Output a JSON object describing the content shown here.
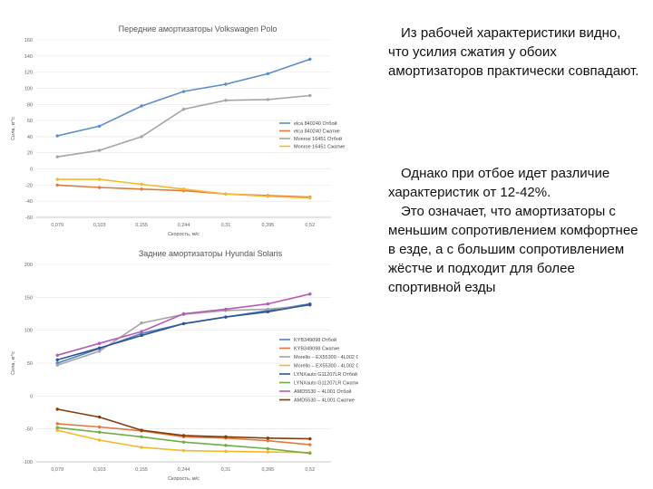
{
  "text": {
    "paragraph1": "Из рабочей характеристики видно, что усилия сжатия у обоих амортизаторов практически совпадают.",
    "paragraph2a": "Однако при отбое идет различие характеристик от 12-42%.",
    "paragraph2b": "Это означает, что амортизаторы с меньшим сопротивлением комфортнее в езде, а с большим сопротивлением жёстче и подходит для более спортивной езды"
  },
  "chart_data": [
    {
      "type": "line",
      "title": "Передние амортизаторы Volkswagen Polo",
      "xlabel": "Скорость, м/с",
      "ylabel": "Сила, кг*с",
      "categories": [
        "0,079",
        "0,103",
        "0,155",
        "0,244",
        "0,31",
        "0,395",
        "0,52"
      ],
      "ylim": [
        -60,
        160
      ],
      "yticks": [
        -60,
        -40,
        -20,
        0,
        20,
        40,
        60,
        80,
        100,
        120,
        140,
        160
      ],
      "grid": true,
      "legend_position": "right",
      "series": [
        {
          "name": "elca 840240  Отбой",
          "color": "#5b8ec9",
          "values": [
            41,
            53,
            78,
            96,
            105,
            118,
            136
          ]
        },
        {
          "name": "elca 840240  Сжатие",
          "color": "#e07b3f",
          "values": [
            -20,
            -23,
            -25,
            -27,
            -31,
            -33,
            -35
          ]
        },
        {
          "name": "Monroe 16451 Отбой",
          "color": "#a5a5a5",
          "values": [
            15,
            23,
            40,
            74,
            85,
            86,
            91
          ]
        },
        {
          "name": "Monroe 16451 Сжатие",
          "color": "#f5b82b",
          "values": [
            -13,
            -13,
            -19,
            -25,
            -31,
            -34,
            -36
          ]
        }
      ]
    },
    {
      "type": "line",
      "title": "Задние амортизаторы Hyundai Solaris",
      "xlabel": "Скорость, м/с",
      "ylabel": "Сила, кг*с",
      "categories": [
        "0,079",
        "0,103",
        "0,155",
        "0,244",
        "0,31",
        "0,395",
        "0,52"
      ],
      "ylim": [
        -100,
        200
      ],
      "yticks": [
        -100,
        -50,
        0,
        50,
        100,
        150,
        200
      ],
      "grid": true,
      "legend_position": "right",
      "series": [
        {
          "name": "KYB349098  Отбой",
          "color": "#4f81bd",
          "values": [
            50,
            72,
            95,
            110,
            120,
            130,
            140
          ]
        },
        {
          "name": "KYB349098  Сжатие",
          "color": "#e07b3f",
          "values": [
            -42,
            -47,
            -53,
            -62,
            -64,
            -68,
            -74
          ]
        },
        {
          "name": "Morello – EX55300 - 4L002 Отбой",
          "color": "#a5a5a5",
          "values": [
            47,
            68,
            111,
            124,
            130,
            132,
            138
          ]
        },
        {
          "name": "Morello – EX55300 - 4L002 Сжатие",
          "color": "#f5b82b",
          "values": [
            -52,
            -67,
            -78,
            -83,
            -84,
            -85,
            -86
          ]
        },
        {
          "name": "LYNXauto G11207LR Отбой",
          "color": "#2f5597",
          "values": [
            55,
            73,
            92,
            110,
            120,
            128,
            139
          ]
        },
        {
          "name": "LYNXauto G11207LR Сжатие",
          "color": "#70ad47",
          "values": [
            -48,
            -55,
            -62,
            -70,
            -75,
            -80,
            -87
          ]
        },
        {
          "name": "AMD5530 – 4L001 Отбой",
          "color": "#b45bb8",
          "values": [
            62,
            80,
            98,
            125,
            132,
            140,
            155
          ]
        },
        {
          "name": "AMD5530 – 4L001 Сжатие",
          "color": "#843c0c",
          "values": [
            -20,
            -32,
            -52,
            -60,
            -62,
            -64,
            -65
          ]
        }
      ]
    }
  ]
}
